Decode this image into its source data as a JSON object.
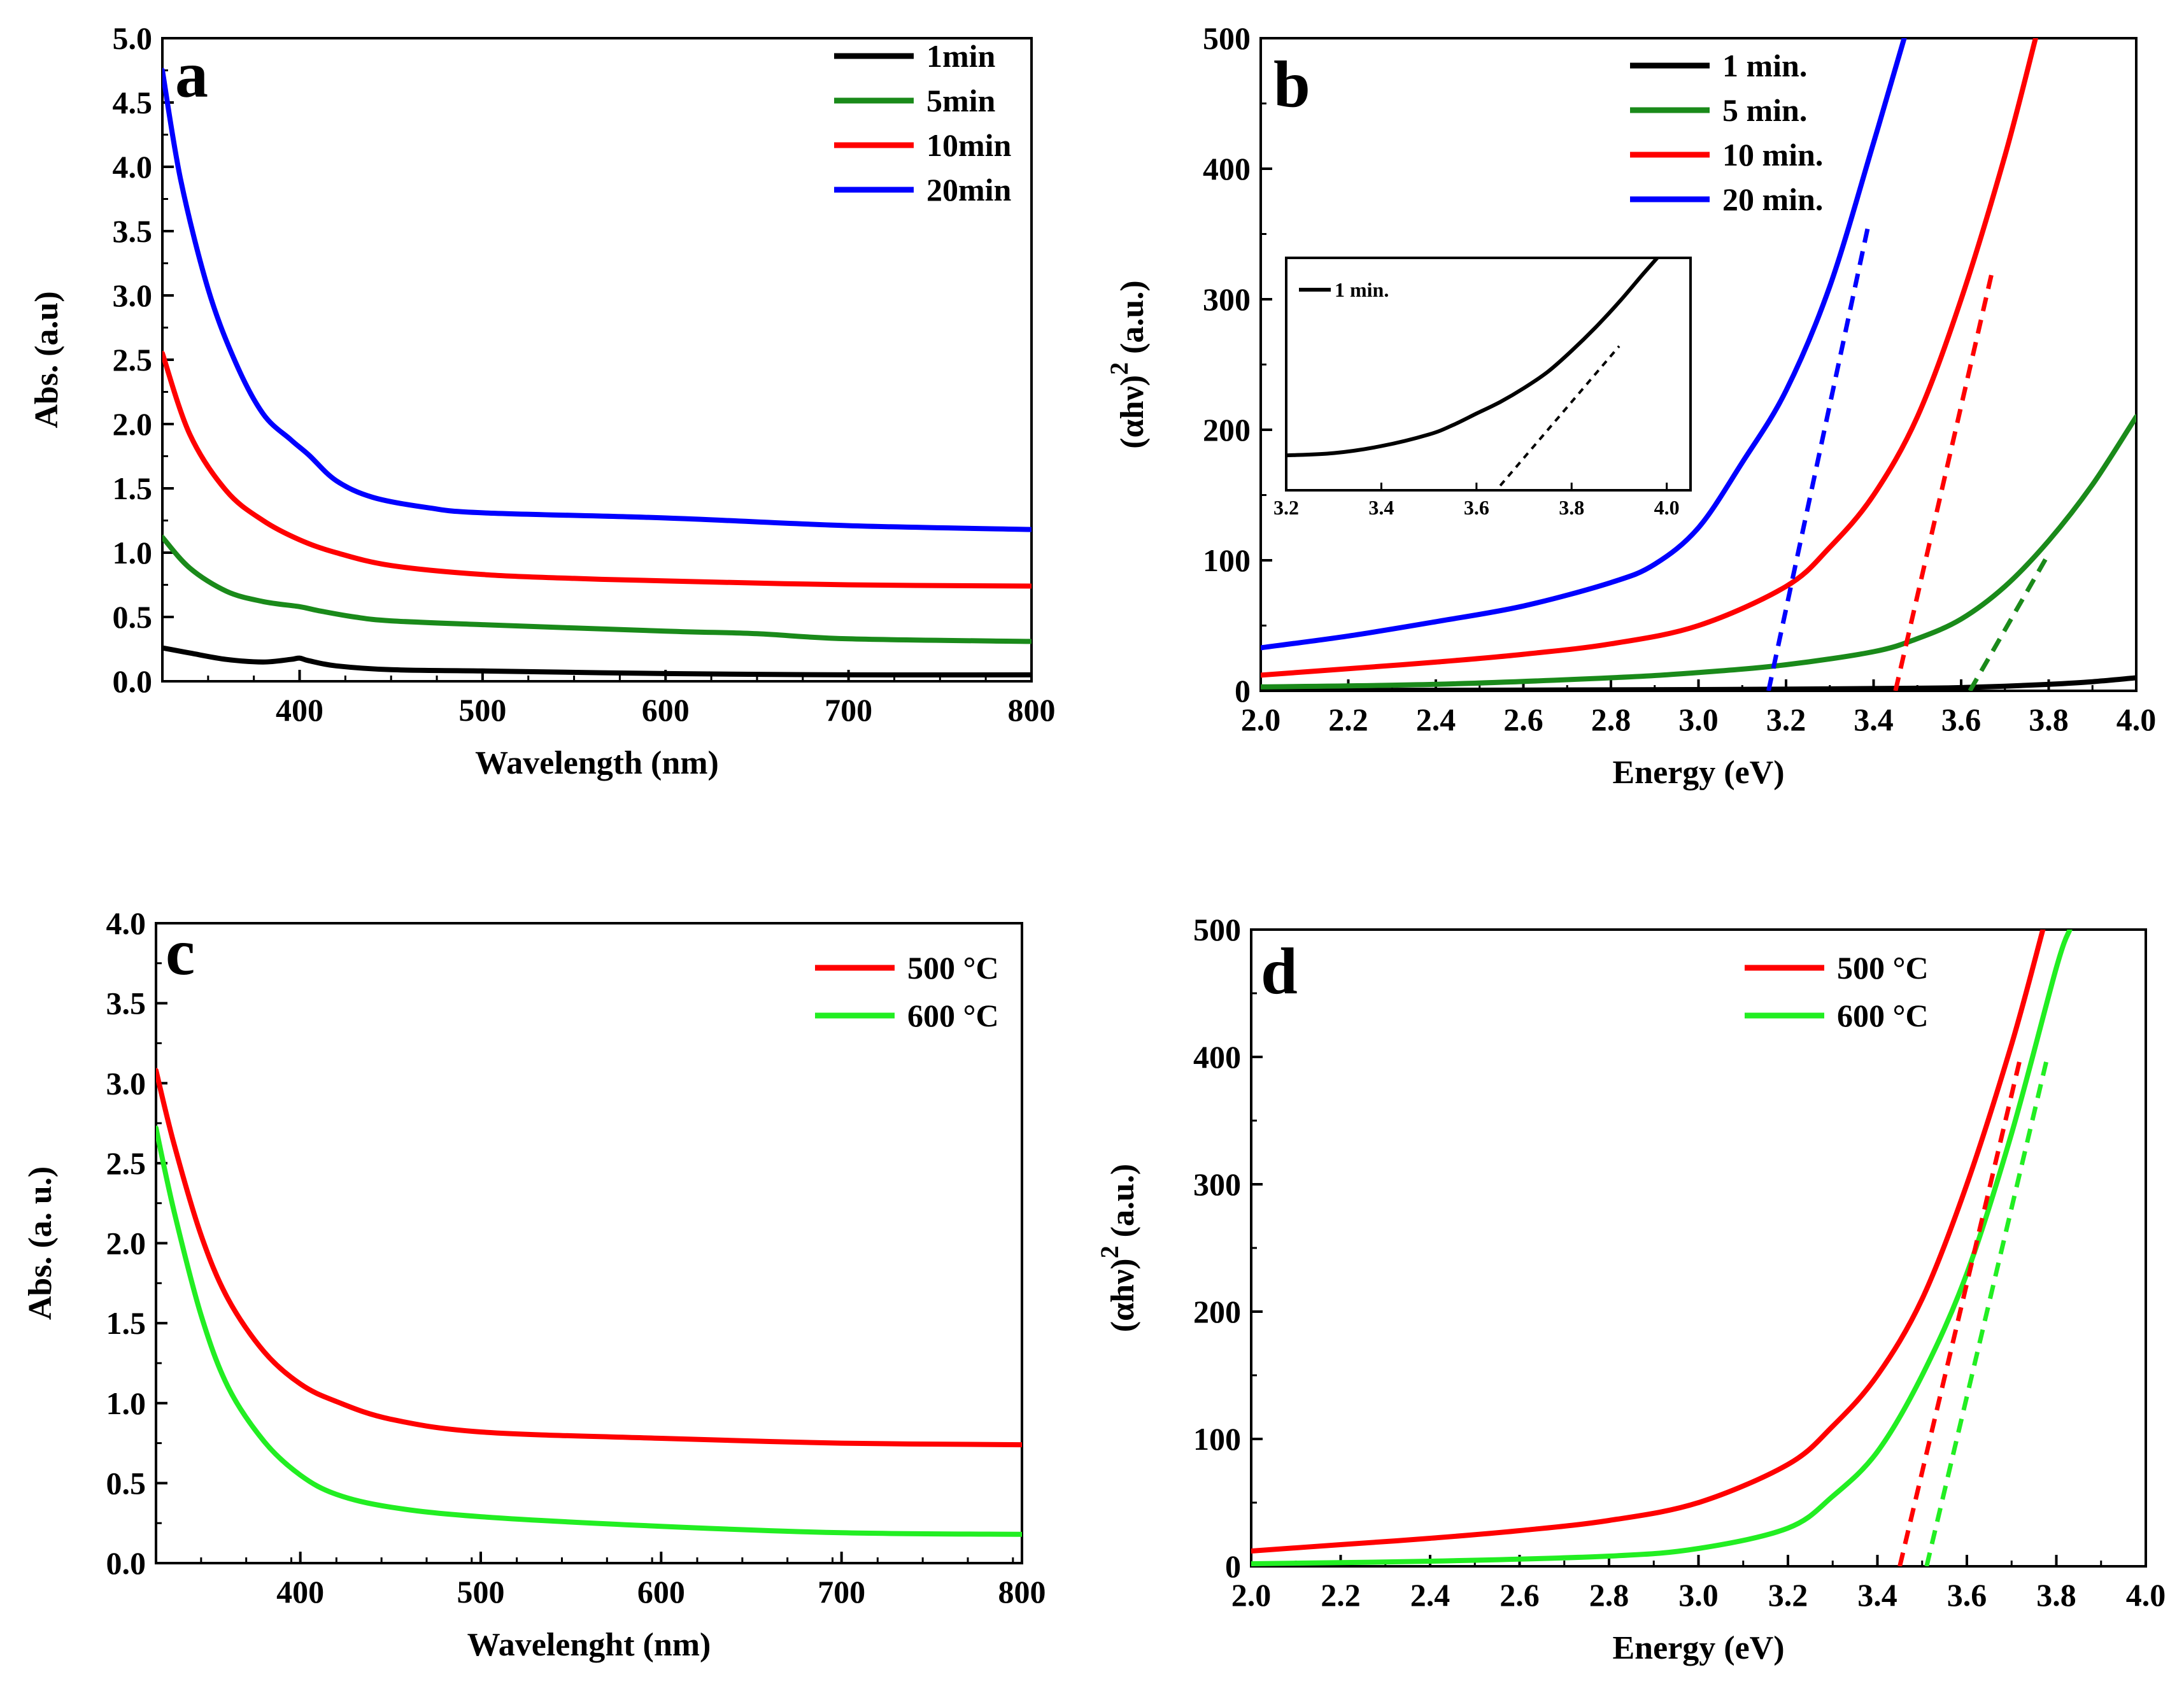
{
  "chart_data": [
    {
      "id": "a",
      "type": "line",
      "panel_label": "a",
      "xlabel": "Wavelength (nm)",
      "ylabel": "Abs. (a.u)",
      "xlim": [
        325,
        800
      ],
      "ylim": [
        0,
        5
      ],
      "xticks": [
        {
          "v": 400,
          "t": "400"
        },
        {
          "v": 500,
          "t": "500"
        },
        {
          "v": 600,
          "t": "600"
        },
        {
          "v": 700,
          "t": "700"
        },
        {
          "v": 800,
          "t": "800"
        }
      ],
      "yticks": [
        {
          "v": 0,
          "t": "0.0"
        },
        {
          "v": 0.5,
          "t": "0.5"
        },
        {
          "v": 1,
          "t": "1.0"
        },
        {
          "v": 1.5,
          "t": "1.5"
        },
        {
          "v": 2,
          "t": "2.0"
        },
        {
          "v": 2.5,
          "t": "2.5"
        },
        {
          "v": 3,
          "t": "3.0"
        },
        {
          "v": 3.5,
          "t": "3.5"
        },
        {
          "v": 4,
          "t": "4.0"
        },
        {
          "v": 4.5,
          "t": "4.5"
        },
        {
          "v": 5,
          "t": "5.0"
        }
      ],
      "legend_position": "top-right",
      "series": [
        {
          "name": "1min",
          "color": "#000000",
          "x": [
            325,
            340,
            360,
            380,
            395,
            400,
            405,
            420,
            450,
            500,
            600,
            700,
            800
          ],
          "y": [
            0.26,
            0.22,
            0.17,
            0.15,
            0.17,
            0.18,
            0.16,
            0.12,
            0.09,
            0.08,
            0.06,
            0.05,
            0.05
          ]
        },
        {
          "name": "5min",
          "color": "#1a8a1a",
          "x": [
            325,
            340,
            360,
            380,
            400,
            410,
            430,
            450,
            500,
            600,
            650,
            700,
            800
          ],
          "y": [
            1.12,
            0.88,
            0.7,
            0.62,
            0.58,
            0.55,
            0.5,
            0.47,
            0.44,
            0.39,
            0.37,
            0.33,
            0.31
          ]
        },
        {
          "name": "10min",
          "color": "#ff0000",
          "x": [
            325,
            340,
            360,
            380,
            400,
            420,
            450,
            500,
            550,
            600,
            700,
            800
          ],
          "y": [
            2.55,
            1.92,
            1.48,
            1.25,
            1.1,
            1.0,
            0.9,
            0.83,
            0.8,
            0.78,
            0.75,
            0.74
          ]
        },
        {
          "name": "20min",
          "color": "#0000ff",
          "x": [
            325,
            335,
            350,
            365,
            380,
            395,
            405,
            420,
            440,
            470,
            500,
            600,
            700,
            800
          ],
          "y": [
            4.75,
            3.9,
            3.05,
            2.48,
            2.08,
            1.88,
            1.76,
            1.56,
            1.43,
            1.35,
            1.31,
            1.27,
            1.21,
            1.18
          ]
        }
      ],
      "fits": []
    },
    {
      "id": "b",
      "type": "line",
      "panel_label": "b",
      "xlabel": "Energy (eV)",
      "ylabel_main": "(αhν)",
      "ylabel_sup": "2",
      "ylabel_tail": " (a.u.)",
      "xlim": [
        2.0,
        4.0
      ],
      "ylim": [
        0,
        500
      ],
      "xticks": [
        {
          "v": 2.0,
          "t": "2.0"
        },
        {
          "v": 2.2,
          "t": "2.2"
        },
        {
          "v": 2.4,
          "t": "2.4"
        },
        {
          "v": 2.6,
          "t": "2.6"
        },
        {
          "v": 2.8,
          "t": "2.8"
        },
        {
          "v": 3.0,
          "t": "3.0"
        },
        {
          "v": 3.2,
          "t": "3.2"
        },
        {
          "v": 3.4,
          "t": "3.4"
        },
        {
          "v": 3.6,
          "t": "3.6"
        },
        {
          "v": 3.8,
          "t": "3.8"
        },
        {
          "v": 4.0,
          "t": "4.0"
        }
      ],
      "yticks": [
        {
          "v": 0,
          "t": "0"
        },
        {
          "v": 100,
          "t": "100"
        },
        {
          "v": 200,
          "t": "200"
        },
        {
          "v": 300,
          "t": "300"
        },
        {
          "v": 400,
          "t": "400"
        },
        {
          "v": 500,
          "t": "500"
        }
      ],
      "legend_position": "top-right",
      "series": [
        {
          "name": "1 min.",
          "color": "#000000",
          "x": [
            2.0,
            2.5,
            3.0,
            3.3,
            3.5,
            3.6,
            3.7,
            3.8,
            3.9,
            4.0
          ],
          "y": [
            0.3,
            0.5,
            1,
            1.5,
            2,
            2.5,
            3.5,
            5,
            7,
            10
          ]
        },
        {
          "name": "5 min.",
          "color": "#1a8a1a",
          "x": [
            2.0,
            2.4,
            2.8,
            3.0,
            3.2,
            3.4,
            3.5,
            3.6,
            3.7,
            3.8,
            3.9,
            4.0
          ],
          "y": [
            3,
            5,
            10,
            14,
            20,
            30,
            40,
            55,
            80,
            115,
            158,
            210
          ]
        },
        {
          "name": "10 min.",
          "color": "#ff0000",
          "x": [
            2.0,
            2.2,
            2.4,
            2.6,
            2.8,
            3.0,
            3.2,
            3.3,
            3.4,
            3.5,
            3.6,
            3.7,
            3.77
          ],
          "y": [
            12,
            17,
            22,
            28,
            36,
            50,
            80,
            110,
            150,
            210,
            300,
            410,
            500
          ]
        },
        {
          "name": "20 min.",
          "color": "#0000ff",
          "x": [
            2.0,
            2.2,
            2.4,
            2.6,
            2.8,
            2.9,
            3.0,
            3.1,
            3.2,
            3.3,
            3.4,
            3.47
          ],
          "y": [
            33,
            42,
            53,
            65,
            83,
            97,
            125,
            175,
            230,
            310,
            420,
            500
          ]
        }
      ],
      "fits": [
        {
          "color": "#0000ff",
          "x": [
            3.16,
            3.39
          ],
          "y": [
            0,
            360
          ]
        },
        {
          "color": "#ff0000",
          "x": [
            3.45,
            3.67
          ],
          "y": [
            0,
            320
          ]
        },
        {
          "color": "#1a8a1a",
          "x": [
            3.62,
            3.8
          ],
          "y": [
            0,
            105
          ]
        }
      ],
      "inset": {
        "xlim": [
          3.2,
          4.05
        ],
        "ylim": [
          0,
          1
        ],
        "xticks": [
          {
            "v": 3.2,
            "t": "3.2"
          },
          {
            "v": 3.4,
            "t": "3.4"
          },
          {
            "v": 3.6,
            "t": "3.6"
          },
          {
            "v": 3.8,
            "t": "3.8"
          },
          {
            "v": 4.0,
            "t": "4.0"
          }
        ],
        "legend": "1 min.",
        "series": {
          "color": "#000000",
          "x": [
            3.2,
            3.3,
            3.4,
            3.5,
            3.55,
            3.6,
            3.65,
            3.7,
            3.75,
            3.8,
            3.85,
            3.9,
            3.95,
            3.98
          ],
          "y": [
            0.15,
            0.16,
            0.19,
            0.24,
            0.28,
            0.33,
            0.38,
            0.44,
            0.51,
            0.6,
            0.7,
            0.81,
            0.93,
            1.0
          ]
        },
        "fit": {
          "color": "#000000",
          "x": [
            3.65,
            3.9
          ],
          "y": [
            0.02,
            0.62
          ]
        }
      }
    },
    {
      "id": "c",
      "type": "line",
      "panel_label": "c",
      "xlabel": "Wavelenght (nm)",
      "ylabel": "Abs. (a. u.)",
      "xlim": [
        320,
        800
      ],
      "ylim": [
        0,
        4
      ],
      "xticks": [
        {
          "v": 400,
          "t": "400"
        },
        {
          "v": 500,
          "t": "500"
        },
        {
          "v": 600,
          "t": "600"
        },
        {
          "v": 700,
          "t": "700"
        },
        {
          "v": 800,
          "t": "800"
        }
      ],
      "yticks": [
        {
          "v": 0,
          "t": "0.0"
        },
        {
          "v": 0.5,
          "t": "0.5"
        },
        {
          "v": 1,
          "t": "1.0"
        },
        {
          "v": 1.5,
          "t": "1.5"
        },
        {
          "v": 2,
          "t": "2.0"
        },
        {
          "v": 2.5,
          "t": "2.5"
        },
        {
          "v": 3,
          "t": "3.0"
        },
        {
          "v": 3.5,
          "t": "3.5"
        },
        {
          "v": 4,
          "t": "4.0"
        }
      ],
      "legend_position": "top-right",
      "series": [
        {
          "name": "500 °C",
          "color": "#ff0000",
          "x": [
            320,
            330,
            345,
            360,
            380,
            400,
            420,
            450,
            500,
            600,
            700,
            800
          ],
          "y": [
            3.08,
            2.62,
            2.05,
            1.65,
            1.32,
            1.12,
            1.01,
            0.9,
            0.82,
            0.78,
            0.75,
            0.74
          ]
        },
        {
          "name": "600 °C",
          "color": "#22ee22",
          "x": [
            320,
            330,
            345,
            360,
            380,
            400,
            420,
            450,
            500,
            600,
            700,
            800
          ],
          "y": [
            2.72,
            2.2,
            1.55,
            1.1,
            0.76,
            0.55,
            0.43,
            0.35,
            0.29,
            0.23,
            0.19,
            0.18
          ]
        }
      ],
      "fits": []
    },
    {
      "id": "d",
      "type": "line",
      "panel_label": "d",
      "xlabel": "Energy (eV)",
      "ylabel_main": "(αhν)",
      "ylabel_sup": "2",
      "ylabel_tail": " (a.u.)",
      "xlim": [
        2.0,
        4.0
      ],
      "ylim": [
        0,
        500
      ],
      "xticks": [
        {
          "v": 2.0,
          "t": "2.0"
        },
        {
          "v": 2.2,
          "t": "2.2"
        },
        {
          "v": 2.4,
          "t": "2.4"
        },
        {
          "v": 2.6,
          "t": "2.6"
        },
        {
          "v": 2.8,
          "t": "2.8"
        },
        {
          "v": 3.0,
          "t": "3.0"
        },
        {
          "v": 3.2,
          "t": "3.2"
        },
        {
          "v": 3.4,
          "t": "3.4"
        },
        {
          "v": 3.6,
          "t": "3.6"
        },
        {
          "v": 3.8,
          "t": "3.8"
        },
        {
          "v": 4.0,
          "t": "4.0"
        }
      ],
      "yticks": [
        {
          "v": 0,
          "t": "0"
        },
        {
          "v": 100,
          "t": "100"
        },
        {
          "v": 200,
          "t": "200"
        },
        {
          "v": 300,
          "t": "300"
        },
        {
          "v": 400,
          "t": "400"
        },
        {
          "v": 500,
          "t": "500"
        }
      ],
      "legend_position": "top-right",
      "series": [
        {
          "name": "500 °C",
          "color": "#ff0000",
          "x": [
            2.0,
            2.2,
            2.4,
            2.6,
            2.8,
            3.0,
            3.2,
            3.3,
            3.4,
            3.5,
            3.6,
            3.7,
            3.77
          ],
          "y": [
            12,
            17,
            22,
            28,
            36,
            50,
            80,
            110,
            150,
            210,
            300,
            410,
            500
          ]
        },
        {
          "name": "600 °C",
          "color": "#22ee22",
          "x": [
            2.0,
            2.4,
            2.8,
            3.0,
            3.2,
            3.3,
            3.4,
            3.5,
            3.6,
            3.7,
            3.8,
            3.83
          ],
          "y": [
            2,
            4,
            8,
            14,
            30,
            55,
            90,
            150,
            230,
            340,
            470,
            500
          ]
        }
      ],
      "fits": [
        {
          "color": "#ff0000",
          "x": [
            3.45,
            3.72
          ],
          "y": [
            0,
            400
          ]
        },
        {
          "color": "#22ee22",
          "x": [
            3.51,
            3.78
          ],
          "y": [
            0,
            400
          ]
        }
      ]
    }
  ]
}
